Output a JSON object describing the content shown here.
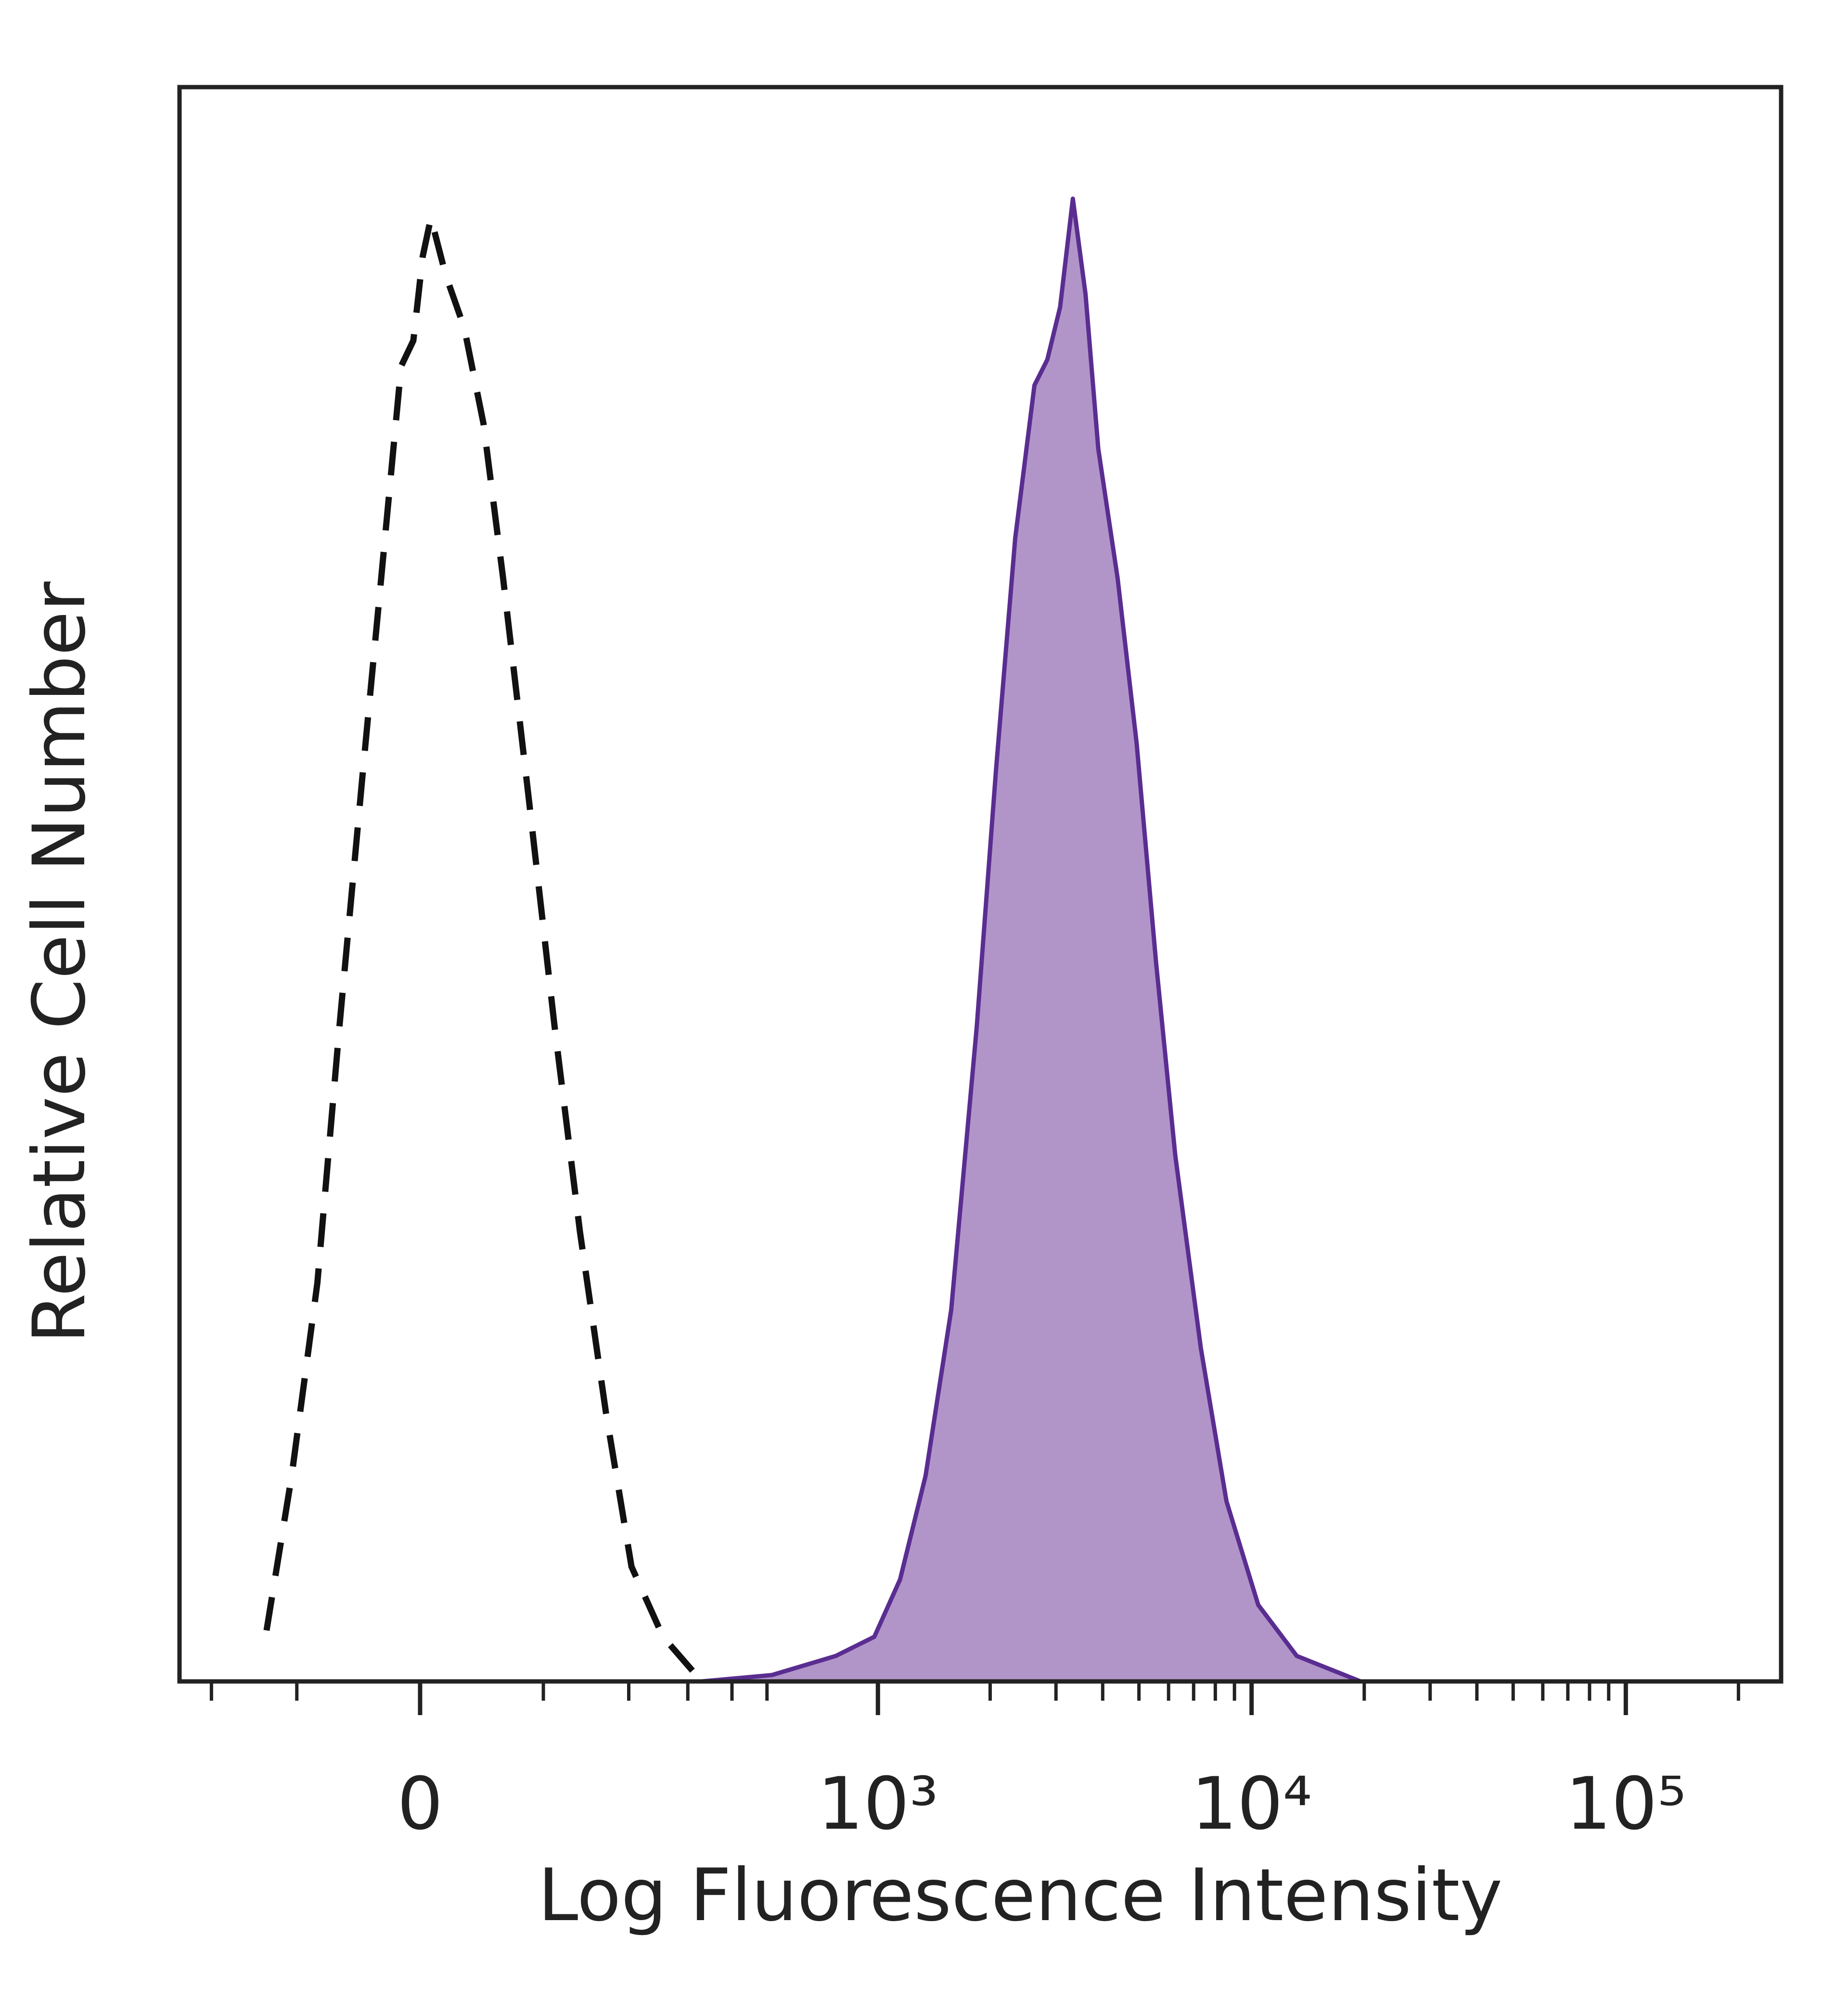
{
  "chart_data": {
    "type": "histogram-overlay",
    "x_label": "Log Fluorescence Intensity",
    "y_label": "Relative Cell Number",
    "xscale": "biexponential",
    "xlim": [
      -250,
      260000
    ],
    "ylim": [
      0,
      100
    ],
    "xticks": [
      0,
      {
        "value": 1000,
        "label": "10³"
      },
      {
        "value": 10000,
        "label": "10⁴"
      },
      {
        "value": 100000,
        "label": "10⁵"
      }
    ],
    "xminorticks": [
      -200,
      -100,
      100,
      200,
      300,
      400,
      500,
      2000,
      3000,
      4000,
      5000,
      6000,
      7000,
      8000,
      9000,
      20000,
      30000,
      40000,
      50000,
      60000,
      70000,
      80000,
      90000,
      200000
    ],
    "series": [
      {
        "color": "#111111",
        "dash": true,
        "fill": null,
        "x": [
          -131,
          -105,
          -81,
          -62,
          -43,
          -29,
          -14,
          -5,
          2,
          8,
          19,
          33,
          48,
          64,
          86,
          111,
          138,
          169,
          204,
          254,
          329
        ],
        "values": [
          3.2,
          12.9,
          25.0,
          41.1,
          57.2,
          69.2,
          82.5,
          84.1,
          89.4,
          91.8,
          88.2,
          84.9,
          78.9,
          69.2,
          55.6,
          41.1,
          28.2,
          16.9,
          7.2,
          2.8,
          0
        ]
      },
      {
        "color": "#5a2d91",
        "dash": false,
        "fill": "#b195c9",
        "x": [
          329,
          516,
          770,
          978,
          1147,
          1343,
          1573,
          1842,
          2074,
          2334,
          2628,
          2844,
          3077,
          3329,
          3599,
          3894,
          4384,
          4932,
          5556,
          6252,
          7320,
          8568,
          10416,
          13200,
          19560,
          260000
        ],
        "values": [
          0,
          0.4,
          1.6,
          2.8,
          6.4,
          12.9,
          23.3,
          41.1,
          57.2,
          71.7,
          81.3,
          82.9,
          86.2,
          93.0,
          87.0,
          77.3,
          69.2,
          58.8,
          45.1,
          33.0,
          20.9,
          11.3,
          4.8,
          1.6,
          0,
          0
        ]
      }
    ]
  }
}
